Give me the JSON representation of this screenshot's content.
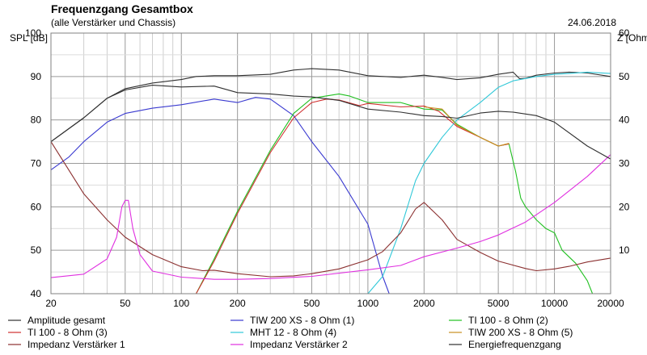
{
  "chart_data": {
    "type": "line",
    "title": "Frequenzgang Gesamtbox",
    "subtitle": "(alle Verstärker und Chassis)",
    "date": "24.06.2018",
    "ylabel_left": "SPL [dB]",
    "ylabel_right": "Z [Ohm]",
    "xscale": "log",
    "xlim": [
      20,
      20000
    ],
    "ylim_left": [
      40,
      100
    ],
    "ylim_right": [
      0,
      60
    ],
    "grid": true,
    "legend_placement": "bottom",
    "x_ticks": [
      {
        "v": 20,
        "label": "20"
      },
      {
        "v": 50,
        "label": "50"
      },
      {
        "v": 100,
        "label": "100"
      },
      {
        "v": 200,
        "label": "200"
      },
      {
        "v": 500,
        "label": "500"
      },
      {
        "v": 1000,
        "label": "1000"
      },
      {
        "v": 2000,
        "label": "2000"
      },
      {
        "v": 5000,
        "label": "5000"
      },
      {
        "v": 10000,
        "label": "10000"
      },
      {
        "v": 20000,
        "label": "20000"
      }
    ],
    "x_minor": [
      30,
      40,
      60,
      70,
      80,
      90,
      300,
      400,
      600,
      700,
      800,
      900,
      3000,
      4000,
      6000,
      7000,
      8000,
      9000
    ],
    "y_ticks_left": [
      {
        "v": 40,
        "label": "40"
      },
      {
        "v": 50,
        "label": "50"
      },
      {
        "v": 60,
        "label": "60"
      },
      {
        "v": 70,
        "label": "70"
      },
      {
        "v": 80,
        "label": "80"
      },
      {
        "v": 90,
        "label": "90"
      },
      {
        "v": 100,
        "label": "100"
      }
    ],
    "y_ticks_right": [
      {
        "v": 10,
        "label": "10"
      },
      {
        "v": 20,
        "label": "20"
      },
      {
        "v": 30,
        "label": "30"
      },
      {
        "v": 40,
        "label": "40"
      },
      {
        "v": 50,
        "label": "50"
      },
      {
        "v": 60,
        "label": "60"
      }
    ],
    "series": [
      {
        "name": "Amplitude gesamt",
        "axis": "left",
        "color": "#303030",
        "points": [
          [
            20,
            75
          ],
          [
            30,
            80.5
          ],
          [
            40,
            85
          ],
          [
            50,
            87.2
          ],
          [
            70,
            88.5
          ],
          [
            100,
            89.3
          ],
          [
            120,
            90
          ],
          [
            150,
            90.2
          ],
          [
            200,
            90.2
          ],
          [
            300,
            90.5
          ],
          [
            400,
            91.5
          ],
          [
            500,
            91.8
          ],
          [
            700,
            91.5
          ],
          [
            1000,
            90.2
          ],
          [
            1500,
            89.8
          ],
          [
            2000,
            90.3
          ],
          [
            2500,
            89.8
          ],
          [
            3000,
            89.3
          ],
          [
            4000,
            89.7
          ],
          [
            5000,
            90.5
          ],
          [
            6000,
            91
          ],
          [
            6500,
            89.5
          ],
          [
            7000,
            89.6
          ],
          [
            8000,
            90.3
          ],
          [
            10000,
            90.8
          ],
          [
            12000,
            91
          ],
          [
            15000,
            90.8
          ],
          [
            20000,
            90
          ]
        ]
      },
      {
        "name": "TIW 200 XS - 8 Ohm (1)",
        "axis": "left",
        "color": "#3a3ad0",
        "points": [
          [
            20,
            68.5
          ],
          [
            25,
            71.5
          ],
          [
            30,
            75
          ],
          [
            40,
            79.5
          ],
          [
            50,
            81.5
          ],
          [
            70,
            82.7
          ],
          [
            100,
            83.5
          ],
          [
            150,
            84.8
          ],
          [
            200,
            84
          ],
          [
            250,
            85.2
          ],
          [
            300,
            84.8
          ],
          [
            400,
            81
          ],
          [
            500,
            75
          ],
          [
            700,
            67
          ],
          [
            1000,
            56
          ],
          [
            1200,
            44
          ],
          [
            1300,
            40
          ]
        ]
      },
      {
        "name": "TI 100 - 8 Ohm (2)",
        "axis": "left",
        "color": "#20c020",
        "points": [
          [
            120,
            40
          ],
          [
            150,
            48
          ],
          [
            200,
            59
          ],
          [
            300,
            73
          ],
          [
            400,
            81.5
          ],
          [
            500,
            85
          ],
          [
            700,
            86
          ],
          [
            800,
            85.5
          ],
          [
            1000,
            84
          ],
          [
            1500,
            84
          ],
          [
            2000,
            82.5
          ],
          [
            2500,
            82.3
          ],
          [
            3000,
            79
          ],
          [
            4000,
            76
          ],
          [
            5000,
            74
          ],
          [
            5700,
            74.5
          ],
          [
            6200,
            68
          ],
          [
            6600,
            62
          ],
          [
            7000,
            60
          ],
          [
            8000,
            57
          ],
          [
            9000,
            55
          ],
          [
            10000,
            54
          ],
          [
            11000,
            50
          ],
          [
            13000,
            47
          ],
          [
            15000,
            43
          ],
          [
            16000,
            40
          ]
        ]
      },
      {
        "name": "TI 100 - 8 Ohm (3)",
        "axis": "left",
        "color": "#d03030",
        "points": [
          [
            120,
            40
          ],
          [
            150,
            47.5
          ],
          [
            200,
            58.5
          ],
          [
            300,
            72.5
          ],
          [
            400,
            80.5
          ],
          [
            500,
            84
          ],
          [
            600,
            84.8
          ],
          [
            700,
            84.6
          ],
          [
            900,
            83.3
          ],
          [
            1000,
            83.8
          ],
          [
            1500,
            83
          ],
          [
            2000,
            83.2
          ],
          [
            2400,
            82
          ],
          [
            3000,
            78.5
          ],
          [
            4000,
            76
          ],
          [
            5000,
            74
          ],
          [
            5700,
            74.5
          ]
        ]
      },
      {
        "name": "MHT 12 - 8 Ohm (4)",
        "axis": "left",
        "color": "#30c8d8",
        "points": [
          [
            1000,
            40
          ],
          [
            1200,
            44
          ],
          [
            1500,
            55
          ],
          [
            1800,
            66
          ],
          [
            2000,
            70
          ],
          [
            2500,
            76
          ],
          [
            3000,
            80
          ],
          [
            4000,
            84
          ],
          [
            5000,
            87.5
          ],
          [
            6000,
            89
          ],
          [
            8000,
            90
          ],
          [
            10000,
            90.5
          ],
          [
            12000,
            90.7
          ],
          [
            15000,
            91
          ],
          [
            20000,
            90.7
          ]
        ]
      },
      {
        "name": "TIW 200 XS - 8 Ohm (5)",
        "axis": "left",
        "color": "#c89020",
        "points": [
          [
            2000,
            83
          ],
          [
            2500,
            82.5
          ],
          [
            3000,
            78.8
          ],
          [
            4000,
            76
          ],
          [
            5000,
            74
          ],
          [
            5700,
            74.6
          ]
        ]
      },
      {
        "name": "Impedanz Verstärker 1",
        "axis": "right",
        "color": "#8b3030",
        "points": [
          [
            20,
            35
          ],
          [
            30,
            23
          ],
          [
            40,
            17
          ],
          [
            50,
            13
          ],
          [
            70,
            9
          ],
          [
            100,
            6.2
          ],
          [
            130,
            5.3
          ],
          [
            150,
            5.4
          ],
          [
            200,
            4.6
          ],
          [
            300,
            3.9
          ],
          [
            400,
            4.1
          ],
          [
            500,
            4.6
          ],
          [
            700,
            5.7
          ],
          [
            1000,
            7.8
          ],
          [
            1200,
            9.7
          ],
          [
            1500,
            14
          ],
          [
            1800,
            19.5
          ],
          [
            2000,
            21
          ],
          [
            2500,
            17
          ],
          [
            3000,
            12.5
          ],
          [
            4000,
            9.5
          ],
          [
            5000,
            7.5
          ],
          [
            7000,
            5.8
          ],
          [
            8000,
            5.3
          ],
          [
            10000,
            5.7
          ],
          [
            12000,
            6.3
          ],
          [
            15000,
            7.3
          ],
          [
            20000,
            8.2
          ]
        ]
      },
      {
        "name": "Impedanz Verstärker 2",
        "axis": "right",
        "color": "#e030e0",
        "points": [
          [
            20,
            3.7
          ],
          [
            30,
            4.5
          ],
          [
            40,
            8
          ],
          [
            45,
            13
          ],
          [
            48,
            20
          ],
          [
            50,
            21.5
          ],
          [
            52,
            21.5
          ],
          [
            55,
            15
          ],
          [
            60,
            9
          ],
          [
            70,
            5.2
          ],
          [
            100,
            3.8
          ],
          [
            150,
            3.3
          ],
          [
            200,
            3.3
          ],
          [
            300,
            3.5
          ],
          [
            500,
            4
          ],
          [
            1000,
            5.5
          ],
          [
            1500,
            6.5
          ],
          [
            2000,
            8.5
          ],
          [
            3000,
            10.5
          ],
          [
            4000,
            12
          ],
          [
            5000,
            13.5
          ],
          [
            7000,
            16.5
          ],
          [
            10000,
            21
          ],
          [
            15000,
            27
          ],
          [
            20000,
            32
          ]
        ]
      },
      {
        "name": "Energiefrequenzgang",
        "axis": "left",
        "color": "#303030",
        "points": [
          [
            20,
            75
          ],
          [
            30,
            80.5
          ],
          [
            40,
            85
          ],
          [
            50,
            86.9
          ],
          [
            70,
            88
          ],
          [
            100,
            87.6
          ],
          [
            150,
            87.8
          ],
          [
            200,
            86.3
          ],
          [
            300,
            86
          ],
          [
            400,
            85.5
          ],
          [
            500,
            85.3
          ],
          [
            700,
            84.5
          ],
          [
            1000,
            82.5
          ],
          [
            1500,
            81.8
          ],
          [
            2000,
            81
          ],
          [
            2500,
            80.8
          ],
          [
            3000,
            80.4
          ],
          [
            4000,
            81.6
          ],
          [
            5000,
            82
          ],
          [
            6000,
            81.8
          ],
          [
            8000,
            81
          ],
          [
            10000,
            79.5
          ],
          [
            15000,
            74
          ],
          [
            20000,
            71
          ]
        ]
      }
    ]
  }
}
